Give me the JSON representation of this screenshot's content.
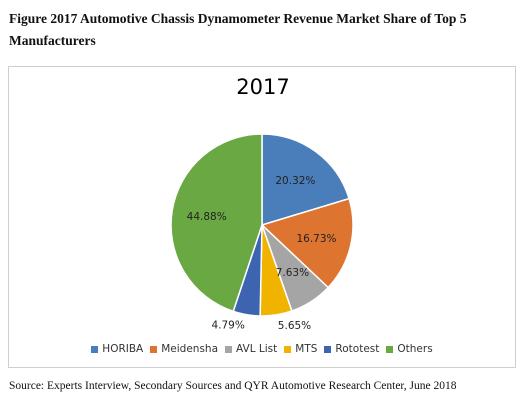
{
  "figure": {
    "caption": "Figure 2017 Automotive Chassis Dynamometer Revenue Market Share of Top 5 Manufacturers",
    "source": "Source: Experts Interview, Secondary Sources and QYR Automotive Research Center, June 2018"
  },
  "chart_data": {
    "type": "pie",
    "title": "2017",
    "legend_position": "bottom",
    "categories": [
      "HORIBA",
      "Meidensha",
      "AVL List",
      "MTS",
      "Rototest",
      "Others"
    ],
    "values": [
      20.32,
      16.73,
      7.63,
      5.65,
      4.79,
      44.88
    ],
    "labels": [
      "20.32%",
      "16.73%",
      "7.63%",
      "5.65%",
      "4.79%",
      "44.88%"
    ],
    "colors": [
      "#4a7ebb",
      "#dd7430",
      "#a5a5a5",
      "#f0b400",
      "#3c64b0",
      "#6aa843"
    ]
  }
}
